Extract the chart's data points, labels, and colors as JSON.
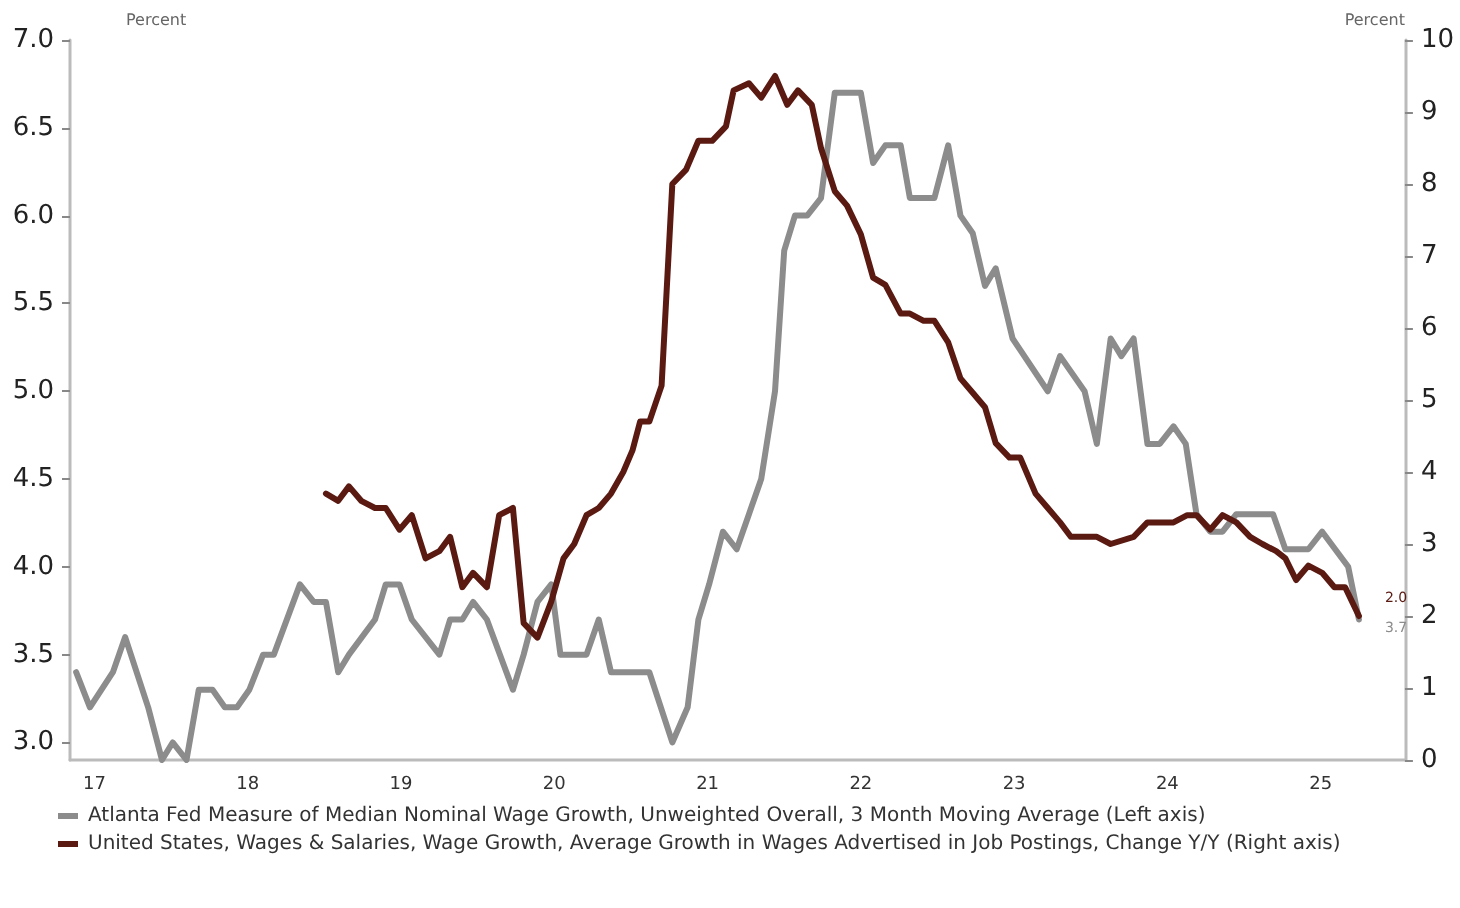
{
  "chart_data": {
    "type": "line",
    "ylabel": "Percent",
    "y2label": "Percent",
    "xlim": [
      16.84,
      25.55
    ],
    "xticks": [
      17,
      18,
      19,
      20,
      21,
      22,
      23,
      24,
      25
    ],
    "ylim": [
      2.9,
      7.0
    ],
    "yticks": [
      {
        "value": 3,
        "label": "3.0"
      },
      {
        "value": 3.5,
        "label": "3.5"
      },
      {
        "value": 4,
        "label": "4.0"
      },
      {
        "value": 4.5,
        "label": "4.5"
      },
      {
        "value": 5,
        "label": "5.0"
      },
      {
        "value": 5.5,
        "label": "5.5"
      },
      {
        "value": 6,
        "label": "6.0"
      },
      {
        "value": 6.5,
        "label": "6.5"
      },
      {
        "value": 7,
        "label": "7.0"
      }
    ],
    "y2lim": [
      0,
      10
    ],
    "y2ticks": [
      0,
      1,
      2,
      3,
      4,
      5,
      6,
      7,
      8,
      9,
      10
    ],
    "grid": false,
    "legend": "bottom",
    "marker": "none",
    "line_style": "solid",
    "series": [
      {
        "name": "Atlanta Fed Measure of Median Nominal Wage Growth, Unweighted Overall, 3 Month Moving Average (Left axis)",
        "color": "#8c8c8c",
        "x": [
          16.88,
          16.97,
          17.12,
          17.2,
          17.35,
          17.44,
          17.51,
          17.6,
          17.68,
          17.77,
          17.85,
          17.93,
          18.01,
          18.1,
          18.17,
          18.34,
          18.43,
          18.51,
          18.59,
          18.66,
          18.83,
          18.9,
          18.99,
          19.07,
          19.25,
          19.32,
          19.4,
          19.47,
          19.56,
          19.73,
          19.8,
          19.89,
          19.98,
          20.04,
          20.21,
          20.29,
          20.37,
          20.62,
          20.77,
          20.87,
          20.94,
          21.01,
          21.1,
          21.19,
          21.27,
          21.35,
          21.44,
          21.5,
          21.57,
          21.65,
          21.74,
          21.83,
          22.0,
          22.08,
          22.16,
          22.26,
          22.32,
          22.48,
          22.57,
          22.65,
          22.73,
          22.81,
          22.88,
          22.99,
          23.22,
          23.3,
          23.46,
          23.54,
          23.63,
          23.7,
          23.78,
          23.87,
          23.95,
          24.04,
          24.12,
          24.19,
          24.28,
          24.36,
          24.45,
          24.69,
          24.77,
          24.86,
          24.92,
          25.01,
          25.18,
          25.25
        ],
        "values": [
          3.4,
          3.2,
          3.4,
          3.6,
          3.2,
          2.9,
          3.0,
          2.9,
          3.3,
          3.3,
          3.2,
          3.2,
          3.3,
          3.5,
          3.5,
          3.9,
          3.8,
          3.8,
          3.4,
          3.5,
          3.7,
          3.9,
          3.9,
          3.7,
          3.5,
          3.7,
          3.7,
          3.8,
          3.7,
          3.3,
          3.5,
          3.8,
          3.9,
          3.5,
          3.5,
          3.7,
          3.4,
          3.4,
          3.0,
          3.2,
          3.7,
          3.9,
          4.2,
          4.1,
          4.3,
          4.5,
          5.0,
          5.8,
          6.0,
          6.0,
          6.1,
          6.7,
          6.7,
          6.3,
          6.4,
          6.4,
          6.1,
          6.1,
          6.4,
          6.0,
          5.9,
          5.6,
          5.7,
          5.3,
          5.0,
          5.2,
          5.0,
          4.7,
          5.3,
          5.2,
          5.3,
          4.7,
          4.7,
          4.8,
          4.7,
          4.3,
          4.2,
          4.2,
          4.3,
          4.3,
          4.1,
          4.1,
          4.1,
          4.2,
          4.0,
          3.7
        ],
        "value_labels": [
          null,
          null,
          null,
          null,
          null,
          null,
          null,
          null,
          null,
          null,
          null,
          null,
          null,
          null,
          null,
          null,
          null,
          null,
          null,
          null,
          null,
          null,
          null,
          null,
          null,
          null,
          null,
          null,
          null,
          null,
          null,
          null,
          null,
          null,
          null,
          null,
          null,
          null,
          null,
          null,
          null,
          null,
          null,
          null,
          null,
          null,
          null,
          null,
          null,
          null,
          null,
          null,
          null,
          null,
          null,
          null,
          null,
          null,
          null,
          null,
          null,
          null,
          null,
          null,
          null,
          null,
          null,
          null,
          null,
          null,
          null,
          null,
          null,
          null,
          null,
          null,
          null,
          null,
          null,
          null,
          null,
          null,
          null,
          null,
          null,
          "3.7"
        ]
      },
      {
        "name": "United States, Wages & Salaries, Wage Growth, Average Growth in Wages Advertised in Job Postings, Change Y/Y (Right axis)",
        "color": "#5a1a12",
        "axis": "y2",
        "x": [
          18.51,
          18.59,
          18.66,
          18.74,
          18.83,
          18.9,
          18.99,
          19.07,
          19.16,
          19.25,
          19.32,
          19.4,
          19.47,
          19.56,
          19.64,
          19.73,
          19.8,
          19.89,
          19.98,
          20.06,
          20.13,
          20.21,
          20.29,
          20.37,
          20.45,
          20.51,
          20.56,
          20.62,
          20.7,
          20.77,
          20.86,
          20.94,
          21.03,
          21.12,
          21.17,
          21.27,
          21.35,
          21.44,
          21.52,
          21.59,
          21.68,
          21.74,
          21.83,
          21.91,
          22.0,
          22.08,
          22.16,
          22.26,
          22.32,
          22.41,
          22.48,
          22.57,
          22.65,
          22.73,
          22.81,
          22.88,
          22.97,
          23.04,
          23.14,
          23.22,
          23.3,
          23.37,
          23.54,
          23.63,
          23.78,
          23.87,
          23.95,
          24.04,
          24.13,
          24.19,
          24.28,
          24.36,
          24.45,
          24.54,
          24.62,
          24.71,
          24.77,
          24.84,
          24.92,
          25.01,
          25.09,
          25.16,
          25.25
        ],
        "values": [
          3.7,
          3.6,
          3.8,
          3.6,
          3.5,
          3.5,
          3.2,
          3.4,
          2.8,
          2.9,
          3.1,
          2.4,
          2.6,
          2.4,
          3.4,
          3.5,
          1.9,
          1.7,
          2.2,
          2.8,
          3.0,
          3.4,
          3.5,
          3.7,
          4.0,
          4.3,
          4.7,
          4.7,
          5.2,
          8.0,
          8.2,
          8.6,
          8.6,
          8.8,
          9.3,
          9.4,
          9.2,
          9.5,
          9.1,
          9.3,
          9.1,
          8.5,
          7.9,
          7.7,
          7.3,
          6.7,
          6.6,
          6.2,
          6.2,
          6.1,
          6.1,
          5.8,
          5.3,
          5.1,
          4.9,
          4.4,
          4.2,
          4.2,
          3.7,
          3.5,
          3.3,
          3.1,
          3.1,
          3.0,
          3.1,
          3.3,
          3.3,
          3.3,
          3.4,
          3.4,
          3.2,
          3.4,
          3.3,
          3.1,
          3.0,
          2.9,
          2.8,
          2.5,
          2.7,
          2.6,
          2.4,
          2.4,
          2.0
        ],
        "value_labels": [
          null,
          null,
          null,
          null,
          null,
          null,
          null,
          null,
          null,
          null,
          null,
          null,
          null,
          null,
          null,
          null,
          null,
          null,
          null,
          null,
          null,
          null,
          null,
          null,
          null,
          null,
          null,
          null,
          null,
          null,
          null,
          null,
          null,
          null,
          null,
          null,
          null,
          null,
          null,
          null,
          null,
          null,
          null,
          null,
          null,
          null,
          null,
          null,
          null,
          null,
          null,
          null,
          null,
          null,
          null,
          null,
          null,
          null,
          null,
          null,
          null,
          null,
          null,
          null,
          null,
          null,
          null,
          null,
          null,
          null,
          null,
          null,
          null,
          null,
          null,
          null,
          null,
          null,
          null,
          null,
          null,
          null,
          "2.0"
        ]
      }
    ]
  }
}
